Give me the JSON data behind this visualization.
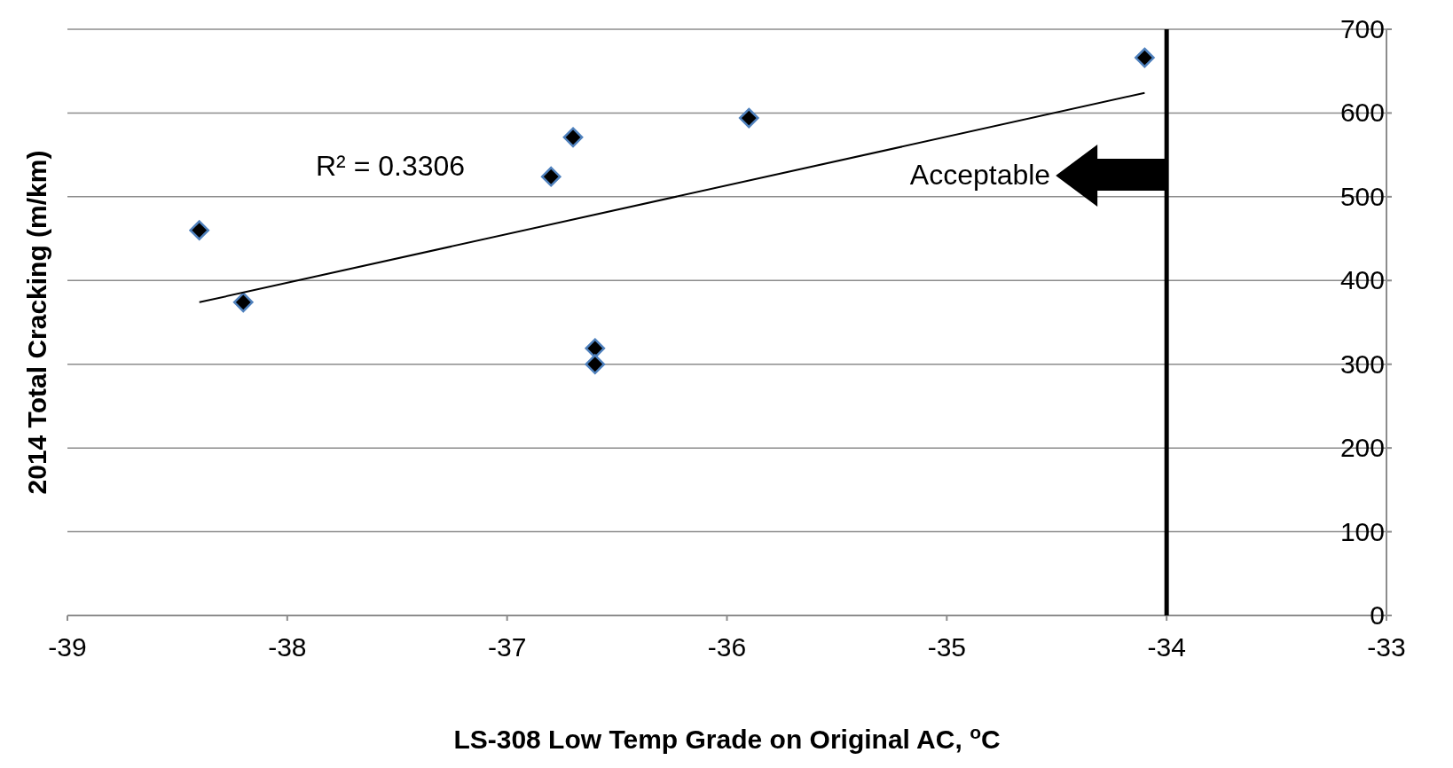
{
  "chart_data": {
    "type": "scatter",
    "xlabel": "LS-308 Low Temp Grade on Original AC, $^{o}$C",
    "ylabel": "2014 Total Cracking (m/km)",
    "xlim": [
      -39,
      -33
    ],
    "xticks": [
      -39,
      -38,
      -37,
      -36,
      -35,
      -34,
      -33
    ],
    "ylim": [
      0,
      700
    ],
    "yticks": [
      0,
      100,
      200,
      300,
      400,
      500,
      600,
      700
    ],
    "grid": "y",
    "series": [
      {
        "color": "#000000",
        "marker": "diamond",
        "x": [
          -38.4,
          -38.2,
          -36.8,
          -36.7,
          -36.6,
          -36.6,
          -35.9,
          -34.1
        ],
        "values": [
          460,
          374,
          524,
          571,
          319,
          300,
          594,
          666
        ]
      },
      {
        "type": "line",
        "color": "#000000",
        "marker": "none",
        "x": [
          -38.4,
          -34.1
        ],
        "values": [
          374,
          624
        ]
      }
    ],
    "ref_lines": [
      {
        "axis": "x",
        "value": -34,
        "color": "#000000"
      }
    ],
    "annotations": [
      "R² = 0.3306",
      "Acceptable"
    ]
  }
}
